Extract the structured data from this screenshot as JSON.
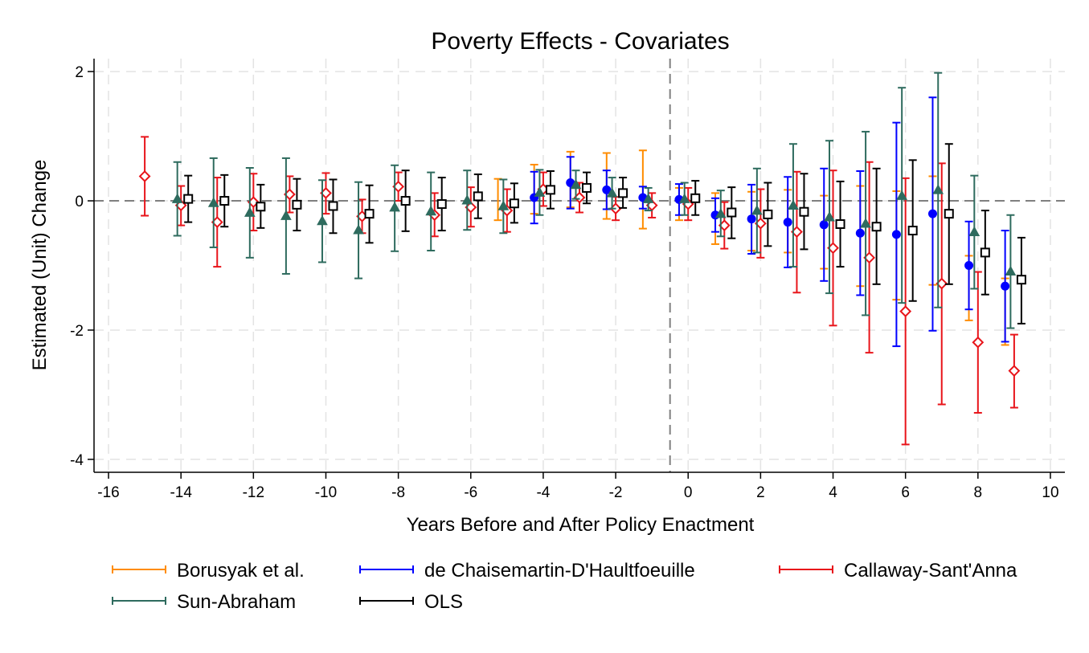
{
  "chart_data": {
    "type": "scatter",
    "title": "Poverty Effects - Covariates",
    "xlabel": "Years Before and After Policy Enactment",
    "ylabel": "Estimated (Unit) Change",
    "xlim": [
      -16.4,
      10.4
    ],
    "ylim": [
      -4.2,
      2.2
    ],
    "xticks": [
      -16,
      -14,
      -12,
      -10,
      -8,
      -6,
      -4,
      -2,
      0,
      2,
      4,
      6,
      8,
      10
    ],
    "xtick_labels": [
      "-16",
      "-14",
      "-12",
      "-10",
      "-8",
      "-6",
      "-4",
      "-2",
      "0",
      "2",
      "4",
      "6",
      "8",
      "10"
    ],
    "yticks": [
      2,
      0,
      -2,
      -4
    ],
    "ytick_labels": [
      "2",
      "0",
      "-2",
      "-4"
    ],
    "grid": true,
    "reference_lines": {
      "y": 0,
      "x": -0.5
    },
    "legend_position": "bottom",
    "series": [
      {
        "name": "Borusyak et al.",
        "color": "#ff8c00",
        "marker": "none",
        "points": [
          {
            "x": -5.25,
            "y": 0.02,
            "lo": -0.3,
            "hi": 0.34
          },
          {
            "x": -4.25,
            "y": 0.1,
            "lo": -0.2,
            "hi": 0.56
          },
          {
            "x": -3.25,
            "y": 0.3,
            "lo": -0.1,
            "hi": 0.76
          },
          {
            "x": -2.25,
            "y": 0.2,
            "lo": -0.28,
            "hi": 0.74
          },
          {
            "x": -1.25,
            "y": 0.15,
            "lo": -0.43,
            "hi": 0.78
          },
          {
            "x": -0.25,
            "y": -0.05,
            "lo": -0.3,
            "hi": 0.2
          },
          {
            "x": 0.75,
            "y": -0.25,
            "lo": -0.67,
            "hi": 0.12
          },
          {
            "x": 1.75,
            "y": -0.3,
            "lo": -0.77,
            "hi": 0.14
          },
          {
            "x": 2.75,
            "y": -0.35,
            "lo": -0.8,
            "hi": 0.17
          },
          {
            "x": 3.75,
            "y": -0.45,
            "lo": -1.05,
            "hi": 0.08
          },
          {
            "x": 4.75,
            "y": -0.55,
            "lo": -1.32,
            "hi": 0.23
          },
          {
            "x": 5.75,
            "y": -0.7,
            "lo": -1.53,
            "hi": 0.15
          },
          {
            "x": 6.75,
            "y": -0.45,
            "lo": -1.3,
            "hi": 0.38
          },
          {
            "x": 7.75,
            "y": -1.35,
            "lo": -1.85,
            "hi": -0.85
          },
          {
            "x": 8.75,
            "y": -1.7,
            "lo": -2.23,
            "hi": -1.2
          }
        ]
      },
      {
        "name": "de Chaisemartin-D'Haultfoeuille",
        "color": "#0000ff",
        "marker": "dot",
        "points": [
          {
            "x": -4.25,
            "y": 0.05,
            "lo": -0.35,
            "hi": 0.45
          },
          {
            "x": -3.25,
            "y": 0.28,
            "lo": -0.12,
            "hi": 0.68
          },
          {
            "x": -2.25,
            "y": 0.17,
            "lo": -0.13,
            "hi": 0.47
          },
          {
            "x": -1.25,
            "y": 0.05,
            "lo": -0.12,
            "hi": 0.22
          },
          {
            "x": -0.25,
            "y": 0.02,
            "lo": -0.22,
            "hi": 0.26
          },
          {
            "x": 0.75,
            "y": -0.22,
            "lo": -0.48,
            "hi": 0.04
          },
          {
            "x": 1.75,
            "y": -0.28,
            "lo": -0.82,
            "hi": 0.25
          },
          {
            "x": 2.75,
            "y": -0.33,
            "lo": -1.03,
            "hi": 0.37
          },
          {
            "x": 3.75,
            "y": -0.37,
            "lo": -1.24,
            "hi": 0.5
          },
          {
            "x": 4.75,
            "y": -0.5,
            "lo": -1.46,
            "hi": 0.46
          },
          {
            "x": 5.75,
            "y": -0.52,
            "lo": -2.25,
            "hi": 1.21
          },
          {
            "x": 6.75,
            "y": -0.2,
            "lo": -2.01,
            "hi": 1.6
          },
          {
            "x": 7.75,
            "y": -1.0,
            "lo": -1.68,
            "hi": -0.32
          },
          {
            "x": 8.75,
            "y": -1.32,
            "lo": -2.18,
            "hi": -0.46
          }
        ]
      },
      {
        "name": "Callaway-Sant'Anna",
        "color": "#e8141a",
        "marker": "diamond",
        "points": [
          {
            "x": -15.0,
            "y": 0.38,
            "lo": -0.23,
            "hi": 0.99
          },
          {
            "x": -14.0,
            "y": -0.07,
            "lo": -0.38,
            "hi": 0.23
          },
          {
            "x": -13.0,
            "y": -0.33,
            "lo": -1.02,
            "hi": 0.36
          },
          {
            "x": -12.0,
            "y": -0.02,
            "lo": -0.46,
            "hi": 0.42
          },
          {
            "x": -11.0,
            "y": 0.1,
            "lo": -0.18,
            "hi": 0.38
          },
          {
            "x": -10.0,
            "y": 0.12,
            "lo": -0.2,
            "hi": 0.43
          },
          {
            "x": -9.0,
            "y": -0.24,
            "lo": -0.5,
            "hi": 0.02
          },
          {
            "x": -8.0,
            "y": 0.22,
            "lo": 0.0,
            "hi": 0.44
          },
          {
            "x": -7.0,
            "y": -0.22,
            "lo": -0.55,
            "hi": 0.12
          },
          {
            "x": -6.0,
            "y": -0.1,
            "lo": -0.4,
            "hi": 0.21
          },
          {
            "x": -5.0,
            "y": -0.15,
            "lo": -0.48,
            "hi": 0.18
          },
          {
            "x": -4.0,
            "y": 0.18,
            "lo": -0.08,
            "hi": 0.44
          },
          {
            "x": -3.0,
            "y": 0.05,
            "lo": -0.18,
            "hi": 0.28
          },
          {
            "x": -2.0,
            "y": -0.12,
            "lo": -0.3,
            "hi": 0.06
          },
          {
            "x": -1.0,
            "y": -0.07,
            "lo": -0.26,
            "hi": 0.12
          },
          {
            "x": 0.0,
            "y": -0.05,
            "lo": -0.3,
            "hi": 0.2
          },
          {
            "x": 1.0,
            "y": -0.38,
            "lo": -0.74,
            "hi": -0.02
          },
          {
            "x": 2.0,
            "y": -0.35,
            "lo": -0.88,
            "hi": 0.18
          },
          {
            "x": 3.0,
            "y": -0.48,
            "lo": -1.42,
            "hi": 0.45
          },
          {
            "x": 4.0,
            "y": -0.73,
            "lo": -1.93,
            "hi": 0.47
          },
          {
            "x": 5.0,
            "y": -0.88,
            "lo": -2.35,
            "hi": 0.6
          },
          {
            "x": 6.0,
            "y": -1.71,
            "lo": -3.77,
            "hi": 0.35
          },
          {
            "x": 7.0,
            "y": -1.28,
            "lo": -3.15,
            "hi": 0.58
          },
          {
            "x": 8.0,
            "y": -2.19,
            "lo": -3.28,
            "hi": -1.1
          },
          {
            "x": 9.0,
            "y": -2.63,
            "lo": -3.2,
            "hi": -2.07
          }
        ]
      },
      {
        "name": "Sun-Abraham",
        "color": "#2e6b5e",
        "marker": "triangle",
        "points": [
          {
            "x": -14.1,
            "y": 0.03,
            "lo": -0.54,
            "hi": 0.6
          },
          {
            "x": -13.1,
            "y": -0.03,
            "lo": -0.72,
            "hi": 0.66
          },
          {
            "x": -12.1,
            "y": -0.18,
            "lo": -0.88,
            "hi": 0.51
          },
          {
            "x": -11.1,
            "y": -0.23,
            "lo": -1.13,
            "hi": 0.66
          },
          {
            "x": -10.1,
            "y": -0.31,
            "lo": -0.95,
            "hi": 0.32
          },
          {
            "x": -9.1,
            "y": -0.45,
            "lo": -1.2,
            "hi": 0.29
          },
          {
            "x": -8.1,
            "y": -0.1,
            "lo": -0.78,
            "hi": 0.55
          },
          {
            "x": -7.1,
            "y": -0.16,
            "lo": -0.77,
            "hi": 0.44
          },
          {
            "x": -6.1,
            "y": 0.01,
            "lo": -0.45,
            "hi": 0.47
          },
          {
            "x": -5.1,
            "y": -0.08,
            "lo": -0.5,
            "hi": 0.33
          },
          {
            "x": -4.1,
            "y": 0.13,
            "lo": -0.22,
            "hi": 0.48
          },
          {
            "x": -3.1,
            "y": 0.25,
            "lo": 0.03,
            "hi": 0.47
          },
          {
            "x": -2.1,
            "y": 0.12,
            "lo": -0.12,
            "hi": 0.36
          },
          {
            "x": -1.1,
            "y": 0.03,
            "lo": -0.15,
            "hi": 0.2
          },
          {
            "x": -0.1,
            "y": 0.03,
            "lo": -0.22,
            "hi": 0.28
          },
          {
            "x": 0.9,
            "y": -0.2,
            "lo": -0.55,
            "hi": 0.16
          },
          {
            "x": 1.9,
            "y": -0.15,
            "lo": -0.8,
            "hi": 0.5
          },
          {
            "x": 2.9,
            "y": -0.07,
            "lo": -1.02,
            "hi": 0.88
          },
          {
            "x": 3.9,
            "y": -0.25,
            "lo": -1.43,
            "hi": 0.93
          },
          {
            "x": 4.9,
            "y": -0.35,
            "lo": -1.77,
            "hi": 1.07
          },
          {
            "x": 5.9,
            "y": 0.08,
            "lo": -1.58,
            "hi": 1.75
          },
          {
            "x": 6.9,
            "y": 0.17,
            "lo": -1.65,
            "hi": 1.98
          },
          {
            "x": 7.9,
            "y": -0.48,
            "lo": -1.36,
            "hi": 0.39
          },
          {
            "x": 8.9,
            "y": -1.09,
            "lo": -1.97,
            "hi": -0.22
          }
        ]
      },
      {
        "name": "OLS",
        "color": "#000000",
        "marker": "square",
        "points": [
          {
            "x": -13.8,
            "y": 0.03,
            "lo": -0.33,
            "hi": 0.39
          },
          {
            "x": -12.8,
            "y": 0.0,
            "lo": -0.4,
            "hi": 0.4
          },
          {
            "x": -11.8,
            "y": -0.09,
            "lo": -0.42,
            "hi": 0.25
          },
          {
            "x": -10.8,
            "y": -0.06,
            "lo": -0.46,
            "hi": 0.34
          },
          {
            "x": -9.8,
            "y": -0.08,
            "lo": -0.5,
            "hi": 0.33
          },
          {
            "x": -8.8,
            "y": -0.2,
            "lo": -0.65,
            "hi": 0.24
          },
          {
            "x": -7.8,
            "y": 0.0,
            "lo": -0.47,
            "hi": 0.47
          },
          {
            "x": -6.8,
            "y": -0.05,
            "lo": -0.46,
            "hi": 0.36
          },
          {
            "x": -5.8,
            "y": 0.07,
            "lo": -0.27,
            "hi": 0.41
          },
          {
            "x": -4.8,
            "y": -0.04,
            "lo": -0.34,
            "hi": 0.27
          },
          {
            "x": -3.8,
            "y": 0.17,
            "lo": -0.12,
            "hi": 0.46
          },
          {
            "x": -2.8,
            "y": 0.2,
            "lo": -0.04,
            "hi": 0.44
          },
          {
            "x": -1.8,
            "y": 0.12,
            "lo": -0.11,
            "hi": 0.36
          },
          {
            "x": 0.2,
            "y": 0.04,
            "lo": -0.22,
            "hi": 0.31
          },
          {
            "x": 1.2,
            "y": -0.18,
            "lo": -0.58,
            "hi": 0.21
          },
          {
            "x": 2.2,
            "y": -0.21,
            "lo": -0.7,
            "hi": 0.28
          },
          {
            "x": 3.2,
            "y": -0.17,
            "lo": -0.75,
            "hi": 0.42
          },
          {
            "x": 4.2,
            "y": -0.36,
            "lo": -1.02,
            "hi": 0.3
          },
          {
            "x": 5.2,
            "y": -0.4,
            "lo": -1.29,
            "hi": 0.5
          },
          {
            "x": 6.2,
            "y": -0.46,
            "lo": -1.55,
            "hi": 0.63
          },
          {
            "x": 7.2,
            "y": -0.2,
            "lo": -1.29,
            "hi": 0.88
          },
          {
            "x": 8.2,
            "y": -0.8,
            "lo": -1.45,
            "hi": -0.15
          },
          {
            "x": 9.2,
            "y": -1.22,
            "lo": -1.9,
            "hi": -0.57
          }
        ]
      }
    ]
  }
}
